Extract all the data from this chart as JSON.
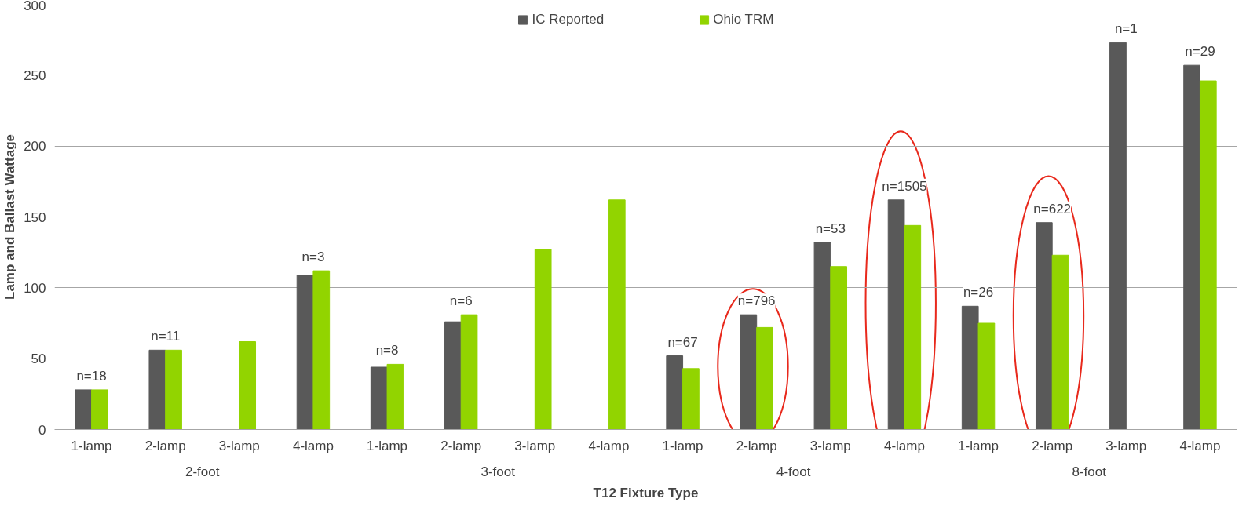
{
  "chart_data": {
    "type": "bar",
    "xlabel": "T12 Fixture Type",
    "ylabel": "Lamp and Ballast Wattage",
    "categories": [
      "1-lamp",
      "2-lamp",
      "3-lamp",
      "4-lamp",
      "1-lamp",
      "2-lamp",
      "3-lamp",
      "4-lamp",
      "1-lamp",
      "2-lamp",
      "3-lamp",
      "4-lamp",
      "1-lamp",
      "2-lamp",
      "3-lamp",
      "4-lamp"
    ],
    "series": [
      {
        "name": "IC Reported",
        "color": "#595959",
        "values": [
          28,
          56,
          null,
          109,
          44,
          76,
          null,
          null,
          52,
          81,
          132,
          162,
          87,
          146,
          273,
          257
        ]
      },
      {
        "name": "Ohio TRM",
        "color": "#92d400",
        "values": [
          28,
          56,
          62,
          112,
          46,
          81,
          127,
          162,
          43,
          72,
          115,
          144,
          75,
          123,
          null,
          246
        ]
      }
    ],
    "annotations": [
      "2-foot",
      "3-foot",
      "4-foot",
      "8-foot",
      "n=18",
      "n=11",
      "n=3",
      "n=8",
      "n=6",
      "n=67",
      "n=796",
      "n=53",
      "n=1505",
      "n=26",
      "n=622",
      "n=1",
      "n=29"
    ],
    "ylim": [
      0,
      300
    ],
    "yticks": [
      0,
      50,
      100,
      150,
      200,
      250,
      300
    ],
    "grid": "y",
    "legend": "top"
  }
}
